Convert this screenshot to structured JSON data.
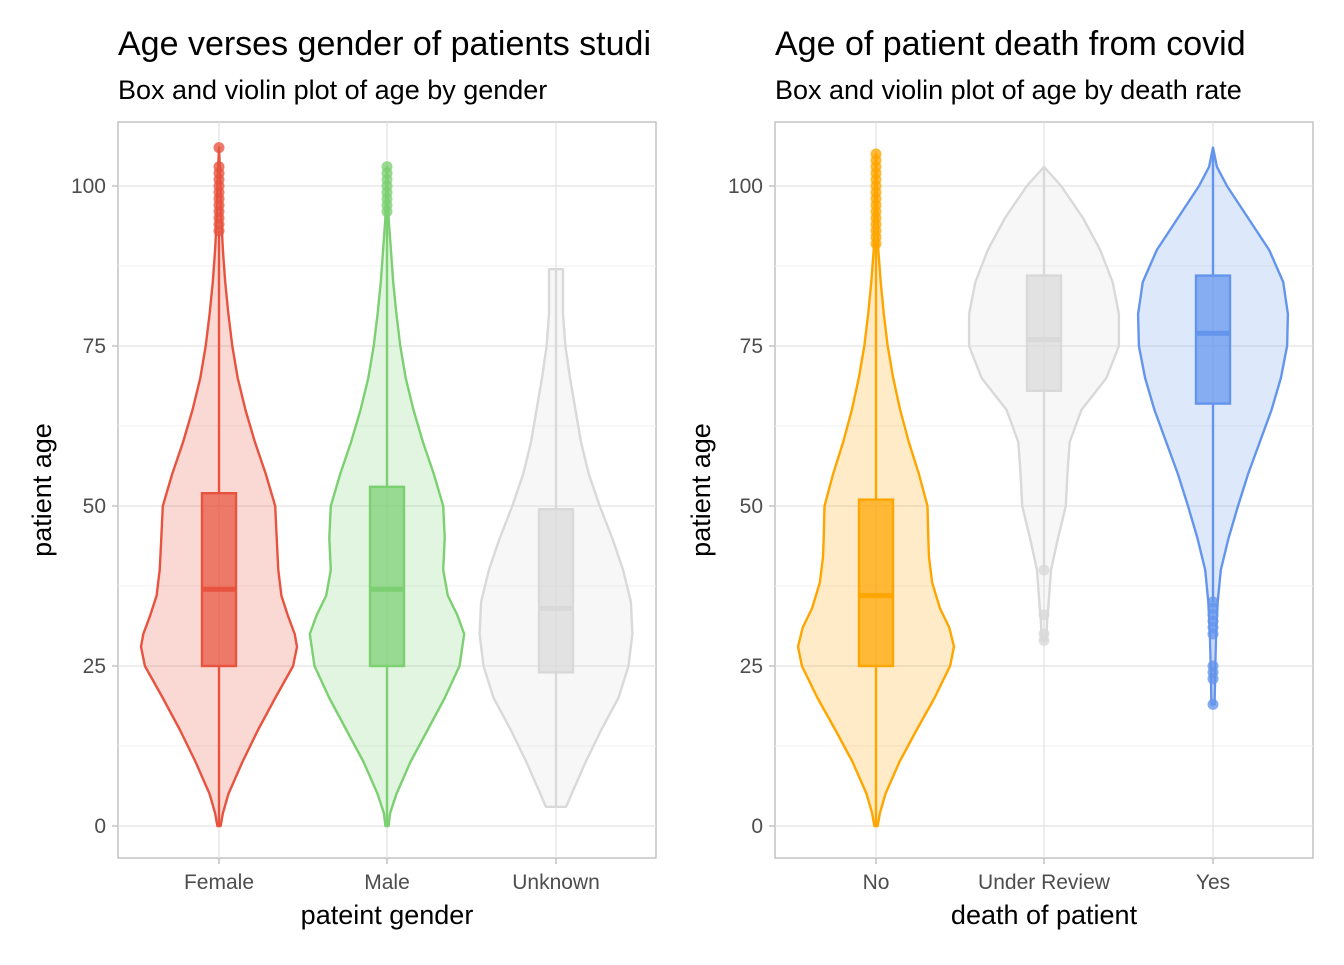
{
  "chart_data": [
    {
      "type": "violin",
      "title": "Age verses gender of patients studi",
      "subtitle": "Box and violin plot of age by gender",
      "xlabel": "pateint gender",
      "ylabel": "patient age",
      "ylim": [
        -5,
        110
      ],
      "yticks": [
        0,
        25,
        50,
        75,
        100
      ],
      "grid": true,
      "categories": [
        "Female",
        "Male",
        "Unknown"
      ],
      "groups": [
        {
          "label": "Female",
          "color": "#e8533f",
          "box": {
            "min": 0,
            "q1": 25,
            "median": 37,
            "q3": 52,
            "max": 93
          },
          "outliers": [
            93,
            94,
            95,
            96,
            97,
            98,
            99,
            100,
            101,
            102,
            103,
            106
          ],
          "density": [
            [
              0,
              0.02
            ],
            [
              2,
              0.05
            ],
            [
              5,
              0.12
            ],
            [
              10,
              0.3
            ],
            [
              15,
              0.5
            ],
            [
              20,
              0.72
            ],
            [
              25,
              0.95
            ],
            [
              28,
              1.0
            ],
            [
              30,
              0.97
            ],
            [
              33,
              0.88
            ],
            [
              36,
              0.8
            ],
            [
              40,
              0.76
            ],
            [
              45,
              0.74
            ],
            [
              50,
              0.72
            ],
            [
              55,
              0.6
            ],
            [
              60,
              0.46
            ],
            [
              65,
              0.34
            ],
            [
              70,
              0.24
            ],
            [
              75,
              0.17
            ],
            [
              80,
              0.12
            ],
            [
              85,
              0.08
            ],
            [
              90,
              0.05
            ],
            [
              95,
              0.03
            ],
            [
              100,
              0.02
            ],
            [
              106,
              0.0
            ]
          ]
        },
        {
          "label": "Male",
          "color": "#7cd072",
          "box": {
            "min": 0,
            "q1": 25,
            "median": 37,
            "q3": 53,
            "max": 96
          },
          "outliers": [
            96,
            97,
            98,
            99,
            100,
            101,
            102,
            103
          ],
          "density": [
            [
              0,
              0.02
            ],
            [
              2,
              0.04
            ],
            [
              5,
              0.12
            ],
            [
              10,
              0.3
            ],
            [
              15,
              0.52
            ],
            [
              20,
              0.74
            ],
            [
              25,
              0.93
            ],
            [
              30,
              0.99
            ],
            [
              33,
              0.9
            ],
            [
              36,
              0.78
            ],
            [
              40,
              0.72
            ],
            [
              45,
              0.74
            ],
            [
              50,
              0.72
            ],
            [
              55,
              0.6
            ],
            [
              60,
              0.46
            ],
            [
              65,
              0.34
            ],
            [
              70,
              0.24
            ],
            [
              75,
              0.17
            ],
            [
              80,
              0.12
            ],
            [
              85,
              0.08
            ],
            [
              90,
              0.05
            ],
            [
              95,
              0.02
            ],
            [
              103,
              0.0
            ]
          ]
        },
        {
          "label": "Unknown",
          "color": "#d9d9d9",
          "box": {
            "min": 3,
            "q1": 24,
            "median": 34,
            "q3": 49.5,
            "max": 87
          },
          "outliers": [],
          "density": [
            [
              3,
              0.13
            ],
            [
              5,
              0.2
            ],
            [
              10,
              0.38
            ],
            [
              15,
              0.58
            ],
            [
              20,
              0.8
            ],
            [
              25,
              0.93
            ],
            [
              30,
              0.98
            ],
            [
              35,
              0.96
            ],
            [
              40,
              0.86
            ],
            [
              45,
              0.72
            ],
            [
              50,
              0.56
            ],
            [
              55,
              0.42
            ],
            [
              60,
              0.32
            ],
            [
              65,
              0.25
            ],
            [
              70,
              0.18
            ],
            [
              75,
              0.12
            ],
            [
              80,
              0.09
            ],
            [
              85,
              0.09
            ],
            [
              87,
              0.09
            ]
          ]
        }
      ]
    },
    {
      "type": "violin",
      "title": "Age of patient death from covid",
      "subtitle": "Box and violin plot of age by death rate",
      "xlabel": "death of patient",
      "ylabel": "patient age",
      "ylim": [
        -5,
        110
      ],
      "yticks": [
        0,
        25,
        50,
        75,
        100
      ],
      "grid": true,
      "categories": [
        "No",
        "Under Review",
        "Yes"
      ],
      "groups": [
        {
          "label": "No",
          "color": "#ffa500",
          "box": {
            "min": 0,
            "q1": 25,
            "median": 36,
            "q3": 51,
            "max": 91
          },
          "outliers": [
            91,
            92,
            93,
            94,
            95,
            96,
            97,
            98,
            99,
            100,
            101,
            102,
            103,
            104,
            105
          ],
          "density": [
            [
              0,
              0.02
            ],
            [
              2,
              0.05
            ],
            [
              5,
              0.12
            ],
            [
              10,
              0.3
            ],
            [
              15,
              0.52
            ],
            [
              20,
              0.75
            ],
            [
              25,
              0.95
            ],
            [
              28,
              1.0
            ],
            [
              31,
              0.94
            ],
            [
              34,
              0.82
            ],
            [
              38,
              0.72
            ],
            [
              42,
              0.68
            ],
            [
              45,
              0.67
            ],
            [
              50,
              0.66
            ],
            [
              55,
              0.55
            ],
            [
              60,
              0.42
            ],
            [
              65,
              0.31
            ],
            [
              70,
              0.22
            ],
            [
              75,
              0.15
            ],
            [
              80,
              0.1
            ],
            [
              85,
              0.06
            ],
            [
              90,
              0.03
            ],
            [
              95,
              0.02
            ],
            [
              100,
              0.01
            ],
            [
              105,
              0.0
            ]
          ]
        },
        {
          "label": "Under Review",
          "color": "#d9d9d9",
          "box": {
            "min": 40,
            "q1": 68,
            "median": 76,
            "q3": 86,
            "max": 103
          },
          "outliers": [
            29,
            30,
            33,
            40
          ],
          "density": [
            [
              29,
              0.03
            ],
            [
              32,
              0.04
            ],
            [
              35,
              0.06
            ],
            [
              40,
              0.09
            ],
            [
              45,
              0.18
            ],
            [
              50,
              0.28
            ],
            [
              55,
              0.3
            ],
            [
              60,
              0.33
            ],
            [
              65,
              0.48
            ],
            [
              70,
              0.8
            ],
            [
              75,
              0.96
            ],
            [
              80,
              0.96
            ],
            [
              85,
              0.88
            ],
            [
              90,
              0.72
            ],
            [
              95,
              0.5
            ],
            [
              100,
              0.22
            ],
            [
              103,
              0.0
            ]
          ]
        },
        {
          "label": "Yes",
          "color": "#6495ed",
          "box": {
            "min": 35,
            "q1": 66,
            "median": 77,
            "q3": 86,
            "max": 106
          },
          "outliers": [
            19,
            23,
            24,
            25,
            30,
            31,
            32,
            33,
            34,
            35
          ],
          "density": [
            [
              19,
              0.02
            ],
            [
              25,
              0.03
            ],
            [
              30,
              0.04
            ],
            [
              35,
              0.06
            ],
            [
              40,
              0.1
            ],
            [
              45,
              0.2
            ],
            [
              50,
              0.32
            ],
            [
              55,
              0.45
            ],
            [
              60,
              0.6
            ],
            [
              65,
              0.75
            ],
            [
              70,
              0.87
            ],
            [
              75,
              0.95
            ],
            [
              80,
              0.96
            ],
            [
              85,
              0.9
            ],
            [
              90,
              0.72
            ],
            [
              95,
              0.45
            ],
            [
              100,
              0.18
            ],
            [
              103,
              0.05
            ],
            [
              106,
              0.0
            ]
          ]
        }
      ]
    }
  ]
}
